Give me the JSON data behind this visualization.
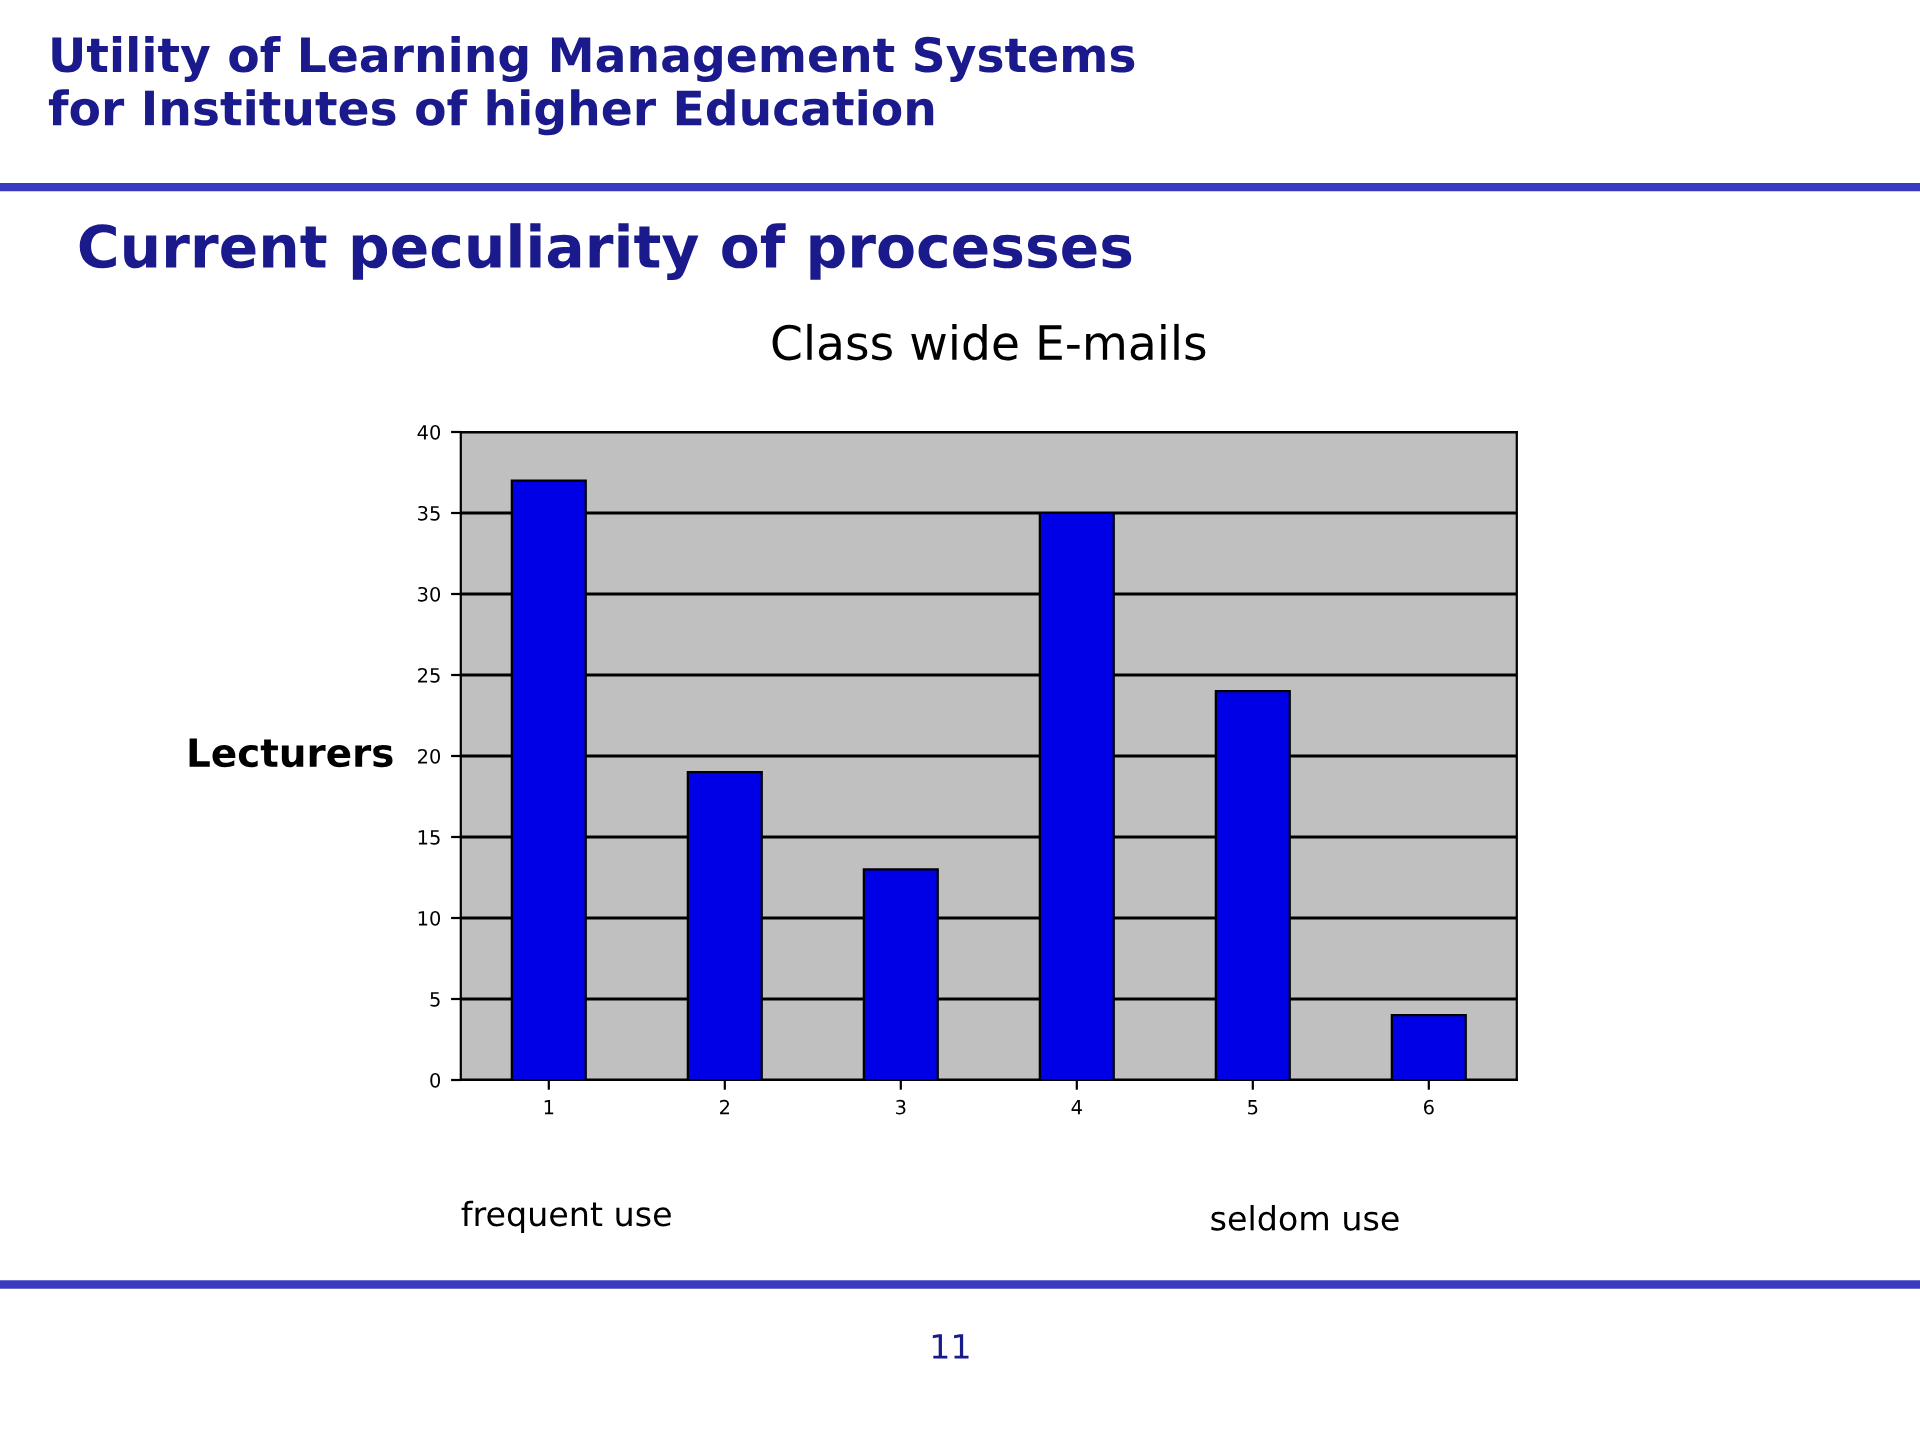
{
  "chart_data": {
    "type": "bar",
    "title": "Class wide E-mails",
    "ylabel": "Lecturers",
    "categories": [
      "1",
      "2",
      "3",
      "4",
      "5",
      "6"
    ],
    "values": [
      37,
      19,
      13,
      35,
      24,
      4
    ],
    "color": "#0000e6",
    "ylim": [
      0,
      40
    ],
    "yticks": [
      0,
      5,
      10,
      15,
      20,
      25,
      30,
      35,
      40
    ],
    "grid": "y",
    "annotations": [
      "Utility of Learning Management Systems\nfor Institutes of higher Education",
      "Current peculiarity of processes",
      "frequent use",
      "seldom use",
      "11"
    ]
  }
}
